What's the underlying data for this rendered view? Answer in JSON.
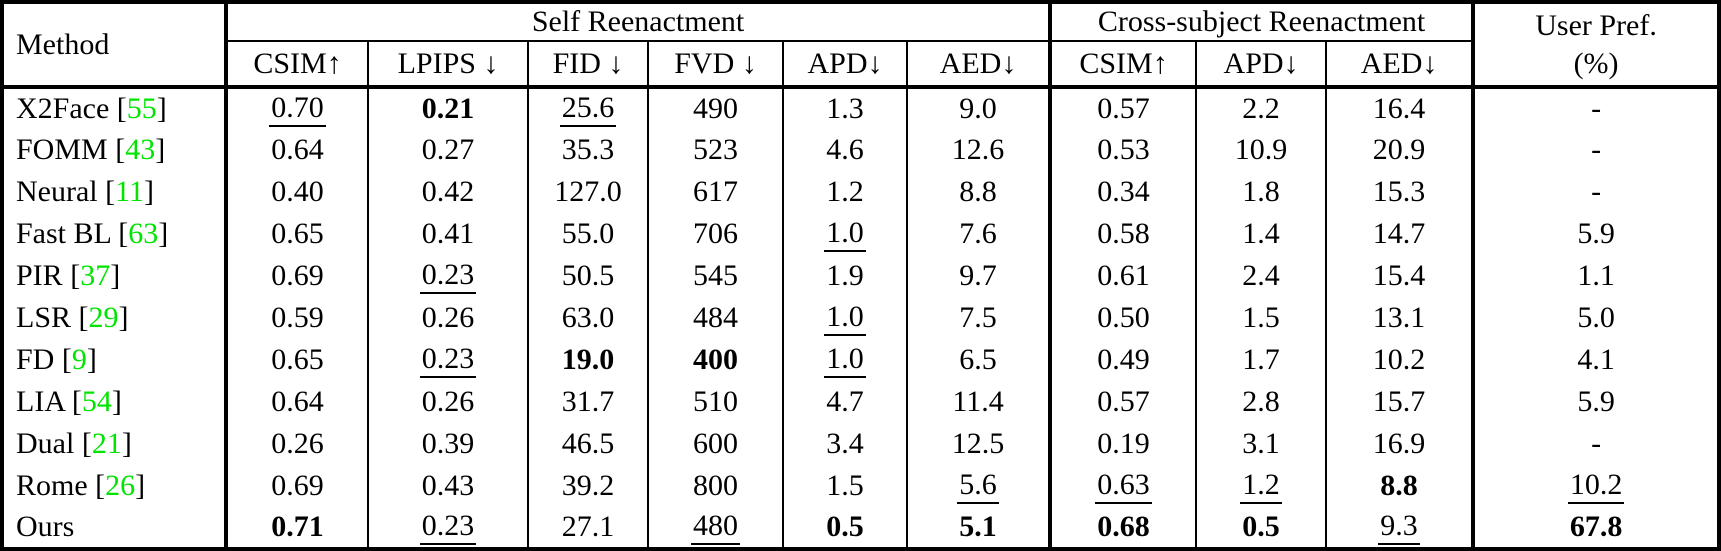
{
  "colors": {
    "citation_green": "#00e400",
    "text": "#000000",
    "background": "#ffffff"
  },
  "table": {
    "header": {
      "method_label": "Method",
      "groups": [
        {
          "label": "Self Reenactment",
          "cols": [
            "CSIM↑",
            "LPIPS ↓",
            "FID ↓",
            "FVD ↓",
            "APD↓",
            "AED↓"
          ]
        },
        {
          "label": "Cross-subject Reenactment",
          "cols": [
            "CSIM↑",
            "APD↓",
            "AED↓"
          ]
        }
      ],
      "user_pref_line1": "User Pref.",
      "user_pref_line2": "(%)"
    },
    "rows": [
      {
        "method": "X2Face",
        "cite": "55",
        "cells": [
          [
            "0.70",
            "underline"
          ],
          [
            "0.21",
            "bold"
          ],
          [
            "25.6",
            "underline"
          ],
          [
            "490",
            ""
          ],
          [
            "1.3",
            ""
          ],
          [
            "9.0",
            ""
          ],
          [
            "0.57",
            ""
          ],
          [
            "2.2",
            ""
          ],
          [
            "16.4",
            ""
          ],
          [
            "-",
            ""
          ]
        ]
      },
      {
        "method": "FOMM",
        "cite": "43",
        "cells": [
          [
            "0.64",
            ""
          ],
          [
            "0.27",
            ""
          ],
          [
            "35.3",
            ""
          ],
          [
            "523",
            ""
          ],
          [
            "4.6",
            ""
          ],
          [
            "12.6",
            ""
          ],
          [
            "0.53",
            ""
          ],
          [
            "10.9",
            ""
          ],
          [
            "20.9",
            ""
          ],
          [
            "-",
            ""
          ]
        ]
      },
      {
        "method": "Neural",
        "cite": "11",
        "cells": [
          [
            "0.40",
            ""
          ],
          [
            "0.42",
            ""
          ],
          [
            "127.0",
            ""
          ],
          [
            "617",
            ""
          ],
          [
            "1.2",
            ""
          ],
          [
            "8.8",
            ""
          ],
          [
            "0.34",
            ""
          ],
          [
            "1.8",
            ""
          ],
          [
            "15.3",
            ""
          ],
          [
            "-",
            ""
          ]
        ]
      },
      {
        "method": "Fast BL",
        "cite": "63",
        "cells": [
          [
            "0.65",
            ""
          ],
          [
            "0.41",
            ""
          ],
          [
            "55.0",
            ""
          ],
          [
            "706",
            ""
          ],
          [
            "1.0",
            "underline"
          ],
          [
            "7.6",
            ""
          ],
          [
            "0.58",
            ""
          ],
          [
            "1.4",
            ""
          ],
          [
            "14.7",
            ""
          ],
          [
            "5.9",
            ""
          ]
        ]
      },
      {
        "method": "PIR",
        "cite": "37",
        "cells": [
          [
            "0.69",
            ""
          ],
          [
            "0.23",
            "underline"
          ],
          [
            "50.5",
            ""
          ],
          [
            "545",
            ""
          ],
          [
            "1.9",
            ""
          ],
          [
            "9.7",
            ""
          ],
          [
            "0.61",
            ""
          ],
          [
            "2.4",
            ""
          ],
          [
            "15.4",
            ""
          ],
          [
            "1.1",
            ""
          ]
        ]
      },
      {
        "method": "LSR",
        "cite": "29",
        "cells": [
          [
            "0.59",
            ""
          ],
          [
            "0.26",
            ""
          ],
          [
            "63.0",
            ""
          ],
          [
            "484",
            ""
          ],
          [
            "1.0",
            "underline"
          ],
          [
            "7.5",
            ""
          ],
          [
            "0.50",
            ""
          ],
          [
            "1.5",
            ""
          ],
          [
            "13.1",
            ""
          ],
          [
            "5.0",
            ""
          ]
        ]
      },
      {
        "method": "FD",
        "cite": "9",
        "cells": [
          [
            "0.65",
            ""
          ],
          [
            "0.23",
            "underline"
          ],
          [
            "19.0",
            "bold"
          ],
          [
            "400",
            "bold"
          ],
          [
            "1.0",
            "underline"
          ],
          [
            "6.5",
            ""
          ],
          [
            "0.49",
            ""
          ],
          [
            "1.7",
            ""
          ],
          [
            "10.2",
            ""
          ],
          [
            "4.1",
            ""
          ]
        ]
      },
      {
        "method": "LIA",
        "cite": "54",
        "cells": [
          [
            "0.64",
            ""
          ],
          [
            "0.26",
            ""
          ],
          [
            "31.7",
            ""
          ],
          [
            "510",
            ""
          ],
          [
            "4.7",
            ""
          ],
          [
            "11.4",
            ""
          ],
          [
            "0.57",
            ""
          ],
          [
            "2.8",
            ""
          ],
          [
            "15.7",
            ""
          ],
          [
            "5.9",
            ""
          ]
        ]
      },
      {
        "method": "Dual",
        "cite": "21",
        "cells": [
          [
            "0.26",
            ""
          ],
          [
            "0.39",
            ""
          ],
          [
            "46.5",
            ""
          ],
          [
            "600",
            ""
          ],
          [
            "3.4",
            ""
          ],
          [
            "12.5",
            ""
          ],
          [
            "0.19",
            ""
          ],
          [
            "3.1",
            ""
          ],
          [
            "16.9",
            ""
          ],
          [
            "-",
            ""
          ]
        ]
      },
      {
        "method": "Rome",
        "cite": "26",
        "cells": [
          [
            "0.69",
            ""
          ],
          [
            "0.43",
            ""
          ],
          [
            "39.2",
            ""
          ],
          [
            "800",
            ""
          ],
          [
            "1.5",
            ""
          ],
          [
            "5.6",
            "underline"
          ],
          [
            "0.63",
            "underline"
          ],
          [
            "1.2",
            "underline"
          ],
          [
            "8.8",
            "bold"
          ],
          [
            "10.2",
            "underline"
          ]
        ]
      },
      {
        "method": "Ours",
        "cite": "",
        "cells": [
          [
            "0.71",
            "bold"
          ],
          [
            "0.23",
            "underline"
          ],
          [
            "27.1",
            ""
          ],
          [
            "480",
            "underline"
          ],
          [
            "0.5",
            "bold"
          ],
          [
            "5.1",
            "bold"
          ],
          [
            "0.68",
            "bold"
          ],
          [
            "0.5",
            "bold"
          ],
          [
            "9.3",
            "underline"
          ],
          [
            "67.8",
            "bold"
          ]
        ]
      }
    ]
  }
}
